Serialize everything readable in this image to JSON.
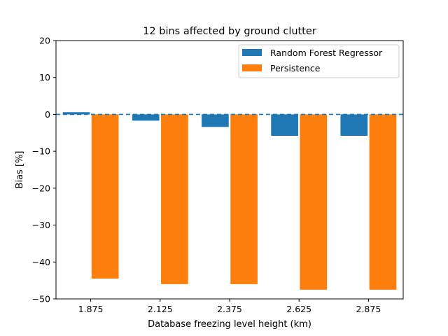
{
  "chart_data": {
    "type": "bar",
    "title": "12 bins affected by ground clutter",
    "xlabel": "Database freezing level height (km)",
    "ylabel": "Bias [%]",
    "ylim": [
      -50,
      20
    ],
    "yticks": [
      "20",
      "10",
      "0",
      "−10",
      "−20",
      "−30",
      "−40",
      "−50"
    ],
    "ytick_values": [
      20,
      10,
      0,
      -10,
      -20,
      -30,
      -40,
      -50
    ],
    "categories": [
      "1.875",
      "2.125",
      "2.375",
      "2.625",
      "2.875"
    ],
    "series": [
      {
        "name": "Random Forest Regressor",
        "color": "#1f77b4",
        "values": [
          0.6,
          -1.7,
          -3.4,
          -5.8,
          -5.8
        ]
      },
      {
        "name": "Persistence",
        "color": "#ff7f0e",
        "values": [
          -44.5,
          -46.0,
          -46.0,
          -47.5,
          -47.5
        ]
      }
    ],
    "reference_line": {
      "y": 0,
      "style": "dashed",
      "color": "#1f77b4"
    },
    "legend": "top-right",
    "grid": false
  }
}
